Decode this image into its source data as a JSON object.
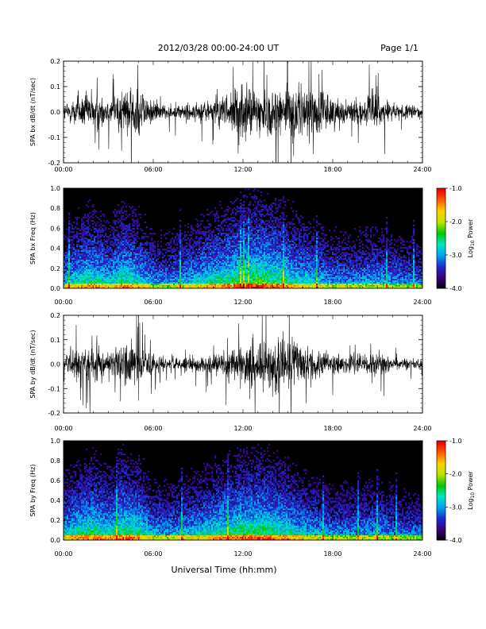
{
  "header": {
    "date_range": "2012/03/28  00:00-24:00 UT",
    "page": "Page 1/1"
  },
  "x_axis": {
    "label": "Universal Time (hh:mm)",
    "ticks": [
      "00:00",
      "06:00",
      "12:00",
      "18:00",
      "24:00"
    ],
    "range_hours": [
      0,
      24
    ]
  },
  "colorbar": {
    "label": "Log10 Power",
    "label_base": "Log",
    "label_sub": "10",
    "label_rest": " Power",
    "ticks": [
      "-1.0",
      "-2.0",
      "-3.0",
      "-4.0"
    ],
    "range": [
      -4.0,
      -1.0
    ],
    "colors": [
      "#000000",
      "#3a0075",
      "#1e28d0",
      "#00a0f0",
      "#00e6c8",
      "#00c800",
      "#b4e600",
      "#ffd200",
      "#ff5a00",
      "#e60000"
    ]
  },
  "chart_data": [
    {
      "type": "line",
      "panel": "bx-waveform",
      "ylabel": "SPA bx dB/dt (nT/sec)",
      "ylim": [
        -0.2,
        0.2
      ],
      "yticks": [
        "0.2",
        "0.1",
        "0.0",
        "-0.1",
        "-0.2"
      ],
      "series": [
        {
          "x": [
            0,
            1,
            2,
            3,
            4,
            5,
            6,
            7,
            8,
            9,
            10,
            11,
            12,
            13,
            14,
            15,
            16,
            17,
            18,
            19,
            20,
            21,
            22,
            23,
            24
          ],
          "amplitude": [
            0.06,
            0.12,
            0.15,
            0.09,
            0.16,
            0.2,
            0.08,
            0.05,
            0.06,
            0.07,
            0.09,
            0.12,
            0.2,
            0.17,
            0.2,
            0.2,
            0.2,
            0.2,
            0.12,
            0.08,
            0.09,
            0.15,
            0.06,
            0.05,
            0.04
          ]
        }
      ]
    },
    {
      "type": "heatmap",
      "panel": "bx-spectrogram",
      "ylabel": "SPA bx Freq (Hz)",
      "ylim": [
        0.0,
        1.0
      ],
      "yticks": [
        "1.0",
        "0.8",
        "0.6",
        "0.4",
        "0.2",
        "0.0"
      ],
      "zlim": [
        -4.0,
        -1.0
      ],
      "activity_by_hour": [
        0.45,
        0.55,
        0.6,
        0.5,
        0.62,
        0.55,
        0.42,
        0.4,
        0.45,
        0.5,
        0.58,
        0.62,
        0.68,
        0.7,
        0.66,
        0.6,
        0.52,
        0.48,
        0.42,
        0.4,
        0.42,
        0.45,
        0.4,
        0.38,
        0.35
      ]
    },
    {
      "type": "line",
      "panel": "by-waveform",
      "ylabel": "SPA by dB/dt (nT/sec)",
      "ylim": [
        -0.2,
        0.2
      ],
      "yticks": [
        "0.2",
        "0.1",
        "0.0",
        "-0.1",
        "-0.2"
      ],
      "series": [
        {
          "x": [
            0,
            1,
            2,
            3,
            4,
            5,
            6,
            7,
            8,
            9,
            10,
            11,
            12,
            13,
            14,
            15,
            16,
            17,
            18,
            19,
            20,
            21,
            22,
            23,
            24
          ],
          "amplitude": [
            0.08,
            0.13,
            0.15,
            0.1,
            0.17,
            0.18,
            0.07,
            0.05,
            0.06,
            0.06,
            0.08,
            0.1,
            0.14,
            0.19,
            0.2,
            0.2,
            0.16,
            0.12,
            0.08,
            0.06,
            0.07,
            0.09,
            0.05,
            0.04,
            0.04
          ]
        }
      ]
    },
    {
      "type": "heatmap",
      "panel": "by-spectrogram",
      "ylabel": "SPA by Freq (Hz)",
      "ylim": [
        0.0,
        1.0
      ],
      "yticks": [
        "1.0",
        "0.8",
        "0.6",
        "0.4",
        "0.2",
        "0.0"
      ],
      "zlim": [
        -4.0,
        -1.0
      ],
      "activity_by_hour": [
        0.5,
        0.58,
        0.62,
        0.55,
        0.65,
        0.6,
        0.45,
        0.42,
        0.47,
        0.5,
        0.56,
        0.6,
        0.64,
        0.66,
        0.62,
        0.58,
        0.5,
        0.45,
        0.4,
        0.4,
        0.42,
        0.44,
        0.38,
        0.36,
        0.34
      ]
    }
  ]
}
